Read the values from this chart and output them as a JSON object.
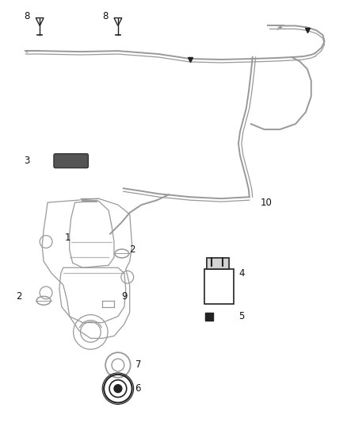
{
  "bg_color": "#ffffff",
  "line_color": "#999999",
  "dark_color": "#222222",
  "label_color": "#111111",
  "fig_width": 4.38,
  "fig_height": 5.33,
  "dpi": 100
}
